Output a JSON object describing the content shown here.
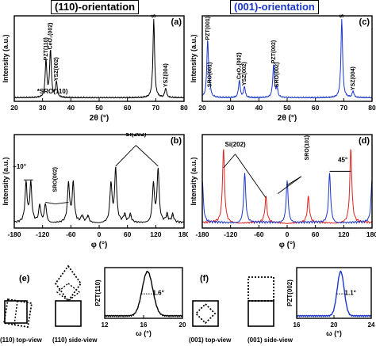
{
  "headers": {
    "left": "(110)-orientation",
    "right": "(001)-orientation"
  },
  "colors": {
    "left": "#000000",
    "blue": "#1a37c8",
    "red": "#e0221f",
    "right_header": "#1a37c8"
  },
  "chart_data": [
    {
      "id": "a",
      "type": "line",
      "panel_label": "(a)",
      "xlabel": "2θ (°)",
      "ylabel": "Intensity (a.u.)",
      "xlim": [
        20,
        80
      ],
      "xticks": [
        "20",
        "30",
        "40",
        "50",
        "60",
        "70",
        "80"
      ],
      "series": [
        {
          "color": "#000000",
          "peaks": [
            [
              31.2,
              0.46
            ],
            [
              32.8,
              0.6
            ],
            [
              34.9,
              0.2
            ],
            [
              69.3,
              1.0
            ],
            [
              73.5,
              0.12
            ]
          ]
        }
      ],
      "annotations": [
        {
          "text": "PZT(110)",
          "x": 31.2,
          "y": 0.46,
          "rotate": true
        },
        {
          "text": "CeO₂(002)",
          "x": 32.8,
          "y": 0.6,
          "rotate": true
        },
        {
          "text": "YSZ(002)",
          "x": 34.9,
          "y": 0.2,
          "rotate": true
        },
        {
          "text": "Si(004)",
          "x": 69.3,
          "y": 1.0,
          "rotate": true
        },
        {
          "text": "YSZ(004)",
          "x": 73.5,
          "y": 0.12,
          "rotate": true
        },
        {
          "text": "*SRO(110)",
          "x": 33.5,
          "y": 0.06,
          "rotate": false
        }
      ]
    },
    {
      "id": "c",
      "type": "line",
      "panel_label": "(c)",
      "xlabel": "2θ (°)",
      "ylabel": "Intensity (a.u.)",
      "xlim": [
        20,
        80
      ],
      "xticks": [
        "20",
        "30",
        "40",
        "50",
        "60",
        "70",
        "80"
      ],
      "series": [
        {
          "color": "#1a37c8",
          "peaks": [
            [
              21.9,
              0.72
            ],
            [
              22.6,
              0.12
            ],
            [
              33.1,
              0.22
            ],
            [
              34.9,
              0.14
            ],
            [
              45.2,
              0.42
            ],
            [
              46.4,
              0.12
            ],
            [
              69.3,
              1.0
            ],
            [
              73.3,
              0.08
            ]
          ]
        }
      ],
      "annotations": [
        {
          "text": "PZT(001)",
          "x": 21.9,
          "y": 0.72,
          "rotate": true
        },
        {
          "text": "SRO(001)",
          "x": 22.6,
          "y": 0.12,
          "rotate": true
        },
        {
          "text": "CeO₂(002)",
          "x": 33.1,
          "y": 0.22,
          "rotate": true
        },
        {
          "text": "YSZ(002)",
          "x": 34.9,
          "y": 0.14,
          "rotate": true
        },
        {
          "text": "PZT(002)",
          "x": 45.2,
          "y": 0.42,
          "rotate": true
        },
        {
          "text": "SRO(002)",
          "x": 46.4,
          "y": 0.12,
          "rotate": true
        },
        {
          "text": "Si(004)",
          "x": 69.3,
          "y": 1.0,
          "rotate": true
        },
        {
          "text": "YSZ(004)",
          "x": 73.3,
          "y": 0.08,
          "rotate": true
        }
      ]
    },
    {
      "id": "b",
      "type": "line",
      "panel_label": "(b)",
      "xlabel": "φ (°)",
      "ylabel": "Intensity (a.u.)",
      "xlim": [
        -180,
        180
      ],
      "xticks": [
        "-180",
        "-120",
        "-60",
        "0",
        "60",
        "120",
        "180"
      ],
      "series": [
        {
          "color": "#000000",
          "peaks": [
            [
              -155,
              0.45
            ],
            [
              -145,
              0.45
            ],
            [
              -126,
              0.2
            ],
            [
              -114,
              0.22
            ],
            [
              -65,
              0.45
            ],
            [
              -55,
              0.45
            ],
            [
              -36,
              0.08
            ],
            [
              -24,
              0.08
            ],
            [
              25,
              0.45
            ],
            [
              35,
              0.62
            ],
            [
              54,
              0.09
            ],
            [
              66,
              0.09
            ],
            [
              115,
              0.45
            ],
            [
              125,
              0.62
            ],
            [
              144,
              0.09
            ],
            [
              156,
              0.09
            ]
          ]
        }
      ],
      "annotations": [
        {
          "text": "Si(202)",
          "x": 78,
          "y": 1.02,
          "rotate": false
        },
        {
          "text": "SRO(002)",
          "x": -93,
          "y": 0.35,
          "rotate": true
        },
        {
          "text": "~10°",
          "x": -169,
          "y": 0.64,
          "rotate": false
        }
      ]
    },
    {
      "id": "d",
      "type": "line",
      "panel_label": "(d)",
      "xlabel": "φ (°)",
      "ylabel": "Intensity (a.u.)",
      "xlim": [
        -180,
        180
      ],
      "xticks": [
        "-180",
        "-120",
        "-60",
        "0",
        "60",
        "120",
        "180"
      ],
      "series": [
        {
          "color": "#e0221f",
          "peaks": [
            [
              -135,
              0.86
            ],
            [
              -45,
              0.3
            ],
            [
              45,
              0.3
            ],
            [
              135,
              0.86
            ]
          ]
        },
        {
          "color": "#1a37c8",
          "peaks": [
            [
              -180,
              0.5
            ],
            [
              -90,
              0.58
            ],
            [
              0,
              0.5
            ],
            [
              90,
              0.58
            ],
            [
              180,
              0.5
            ]
          ]
        }
      ],
      "annotations": [
        {
          "text": "Si(202)",
          "x": -110,
          "y": 0.9,
          "rotate": false
        },
        {
          "text": "SRO(101)",
          "x": 42,
          "y": 0.72,
          "rotate": true
        },
        {
          "text": "45°",
          "x": 118,
          "y": 0.72,
          "rotate": false
        }
      ]
    },
    {
      "id": "e_rc",
      "type": "line",
      "panel_label": "",
      "xlabel": "ω (°)",
      "ylabel": "PZT(110)",
      "xlim": [
        10,
        20
      ],
      "xticks": [
        "12",
        "16",
        "20"
      ],
      "series": [
        {
          "color": "#000000",
          "peak": [
            15.5,
            1.0
          ],
          "fwhm": 1.6
        }
      ],
      "annotations": [
        {
          "text": "1.6°",
          "x": 16.9,
          "y": 0.5,
          "rotate": false
        }
      ]
    },
    {
      "id": "f_rc",
      "type": "line",
      "panel_label": "",
      "xlabel": "ω (°)",
      "ylabel": "PZT(002)",
      "xlim": [
        16,
        26
      ],
      "xticks": [
        "16",
        "20",
        "24"
      ],
      "series": [
        {
          "color": "#1a37c8",
          "peak": [
            21.9,
            1.0
          ],
          "fwhm": 1.1
        }
      ],
      "annotations": [
        {
          "text": "1.1°",
          "x": 23.2,
          "y": 0.5,
          "rotate": false
        }
      ]
    }
  ],
  "schematics": {
    "e": {
      "label": "(e)",
      "top_caption": "(110) top-view",
      "side_caption": "(110) side-view"
    },
    "f": {
      "label": "(f)",
      "top_caption": "(001) top-view",
      "side_caption": "(001) side-view"
    }
  }
}
